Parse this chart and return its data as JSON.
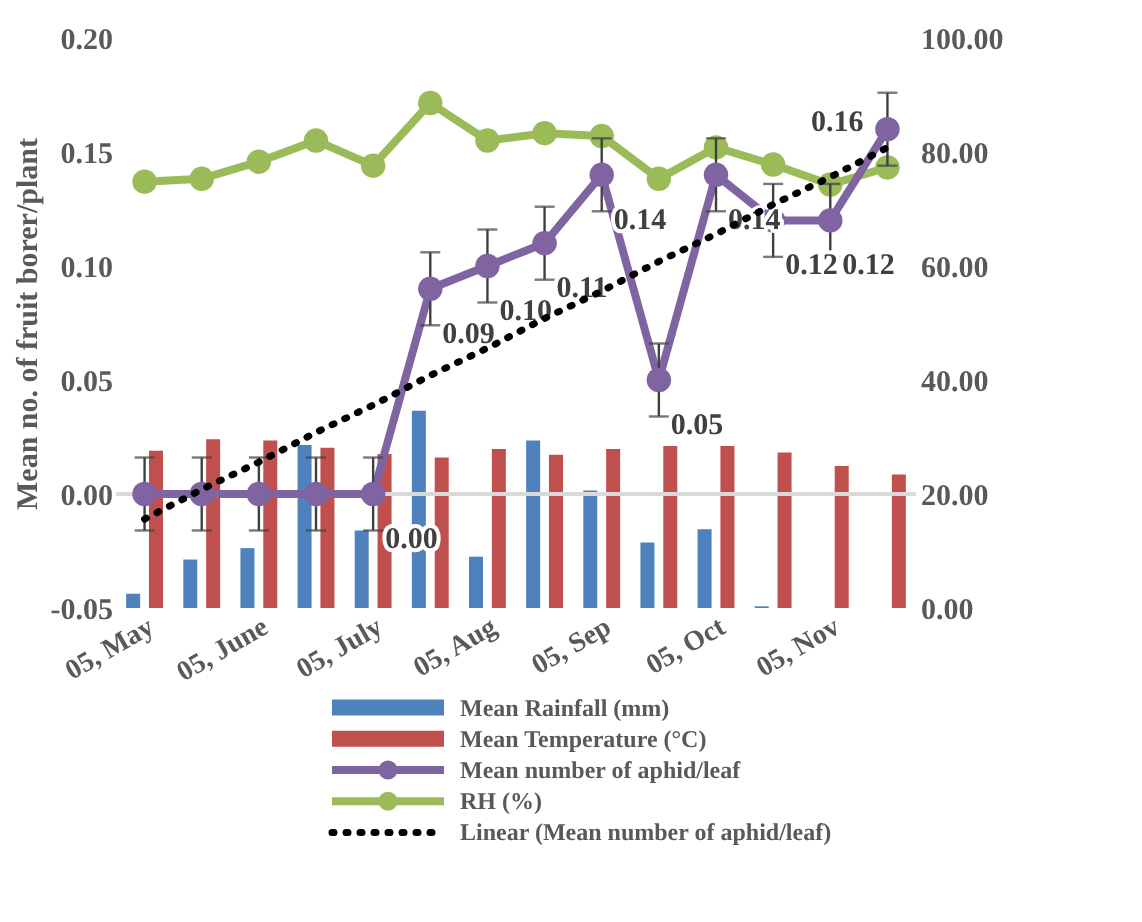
{
  "chart_data": {
    "type": "bar",
    "ylabel": "Mean no. of  fruit borer/plant",
    "categories": [
      "05, May",
      null,
      "05, June",
      null,
      "05, July",
      null,
      "05, Aug",
      null,
      "05, Sep",
      null,
      "05, Oct",
      null,
      "05, Nov",
      null
    ],
    "series": [
      {
        "name": "Mean Rainfall (mm)",
        "axis": "y2",
        "color": "#4f81bd",
        "values": [
          2.5,
          8.5,
          10.5,
          28.6,
          13.6,
          34.6,
          9.0,
          29.4,
          20.6,
          11.5,
          13.8,
          0.3,
          0,
          0
        ]
      },
      {
        "name": "Mean Temperature (°C)",
        "axis": "y2",
        "color": "#c0504d",
        "values": [
          27.6,
          29.6,
          29.4,
          28.1,
          27.0,
          26.4,
          27.9,
          26.9,
          27.9,
          28.4,
          28.4,
          27.3,
          24.9,
          23.4
        ]
      },
      {
        "name": "Mean number of aphid/leaf",
        "type": "line",
        "color": "#8064a2",
        "marker": "circle",
        "values": [
          0,
          0,
          0,
          0,
          0,
          0.09,
          0.1,
          0.11,
          0.14,
          0.05,
          0.14,
          0.12,
          0.12,
          0.16
        ],
        "errors": [
          0.016,
          0.016,
          0.016,
          0.016,
          0.016,
          0.016,
          0.016,
          0.016,
          0.016,
          0.016,
          0.016,
          0.016,
          0.016,
          0.016
        ],
        "value_labels": [
          null,
          null,
          null,
          null,
          "0.00",
          "0.09",
          "0.10",
          "0.11",
          "0.14",
          "0.05",
          "0.14",
          "0.12",
          "0.12",
          "0.16"
        ]
      },
      {
        "name": "RH (%)",
        "type": "line",
        "axis": "y2",
        "color": "#9bbb59",
        "marker": "circle",
        "values": [
          74.8,
          75.3,
          78.3,
          82.0,
          77.6,
          88.6,
          82.0,
          83.3,
          82.8,
          75.3,
          80.8,
          77.8,
          74.3,
          77.3
        ]
      },
      {
        "name": "Linear (Mean number of aphid/leaf)",
        "type": "line",
        "color": "#000000",
        "marker": "none",
        "line_style": "dotted",
        "values": [
          -0.011,
          0.002,
          0.014,
          0.027,
          0.039,
          0.052,
          0.064,
          0.077,
          0.089,
          0.102,
          0.114,
          0.127,
          0.139,
          0.152
        ]
      }
    ],
    "ylim": [
      -0.05,
      0.2
    ],
    "yticks": [
      {
        "value": -0.05,
        "label": "-0.05"
      },
      {
        "value": 0,
        "label": "0.00"
      },
      {
        "value": 0.05,
        "label": "0.05"
      },
      {
        "value": 0.1,
        "label": "0.10"
      },
      {
        "value": 0.15,
        "label": "0.15"
      },
      {
        "value": 0.2,
        "label": "0.20"
      }
    ],
    "y2lim": [
      0,
      100
    ],
    "y2ticks": [
      {
        "value": 0,
        "label": "0.00"
      },
      {
        "value": 20,
        "label": "20.00"
      },
      {
        "value": 40,
        "label": "40.00"
      },
      {
        "value": 60,
        "label": "60.00"
      },
      {
        "value": 80,
        "label": "80.00"
      },
      {
        "value": 100,
        "label": "100.00"
      }
    ],
    "ref_lines": [
      {
        "axis": "y",
        "value": 0,
        "color": "#d9d9d9"
      }
    ],
    "legend": "bottom",
    "grid": false
  }
}
